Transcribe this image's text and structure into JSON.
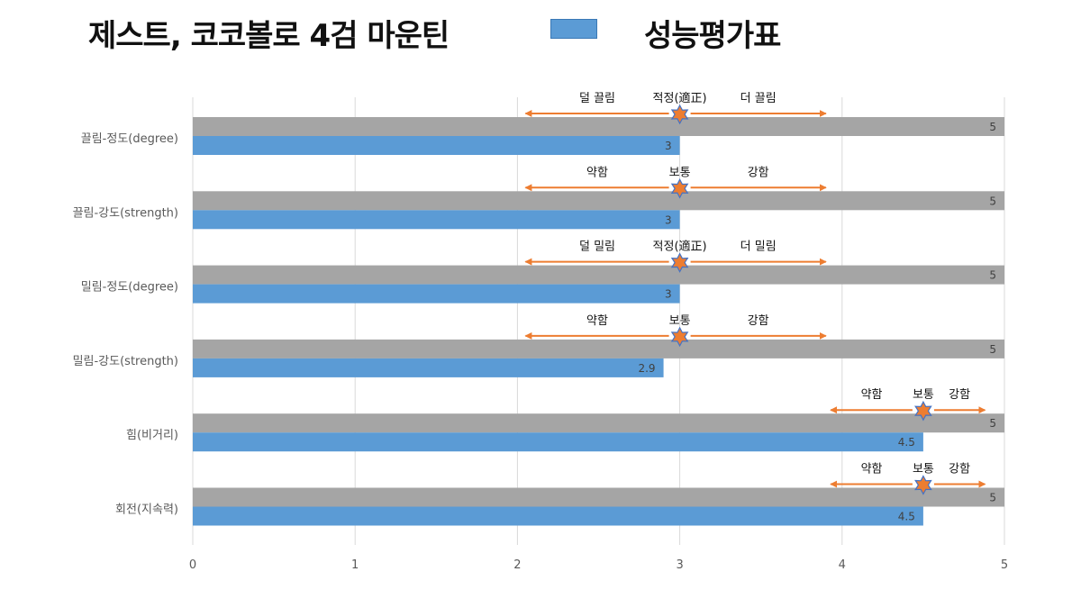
{
  "title": "제스트, 코코볼로 4검 마운틴",
  "legend": {
    "label": "성능평가표",
    "color": "#5b9bd5"
  },
  "chart_data": {
    "type": "bar",
    "orientation": "horizontal",
    "categories": [
      "끌림-정도(degree)",
      "끌림-강도(strength)",
      "밀림-정도(degree)",
      "밀림-강도(strength)",
      "힘(비거리)",
      "회전(지속력)"
    ],
    "series": [
      {
        "name": "",
        "color": "#a5a5a5",
        "values": [
          5,
          5,
          5,
          5,
          5,
          5
        ]
      },
      {
        "name": "성능평가표",
        "color": "#5b9bd5",
        "values": [
          3,
          3,
          3,
          2.9,
          4.5,
          4.5
        ]
      }
    ],
    "xlim": [
      0,
      5
    ],
    "xticks": [
      "0",
      "1",
      "2",
      "3",
      "4",
      "5"
    ],
    "grid": true,
    "annotations": [
      {
        "left": "덜 끌림",
        "center": "적정(適正)",
        "right": "더 끌림",
        "marker": 3,
        "arrow_from": 2.05,
        "arrow_to": 3.9
      },
      {
        "left": "약함",
        "center": "보통",
        "right": "강함",
        "marker": 3,
        "arrow_from": 2.05,
        "arrow_to": 3.9
      },
      {
        "left": "덜 밀림",
        "center": "적정(適正)",
        "right": "더 밀림",
        "marker": 3,
        "arrow_from": 2.05,
        "arrow_to": 3.9
      },
      {
        "left": "약함",
        "center": "보통",
        "right": "강함",
        "marker": 3,
        "arrow_from": 2.05,
        "arrow_to": 3.9
      },
      {
        "left": "약함",
        "center": "보통",
        "right": "강함",
        "marker": 4.5,
        "arrow_from": 3.93,
        "arrow_to": 4.88
      },
      {
        "left": "약함",
        "center": "보통",
        "right": "강함",
        "marker": 4.5,
        "arrow_from": 3.93,
        "arrow_to": 4.88
      }
    ],
    "colors": {
      "arrow": "#ed7d31",
      "marker": "#ed7d31",
      "marker_stroke": "#4472c4"
    }
  }
}
